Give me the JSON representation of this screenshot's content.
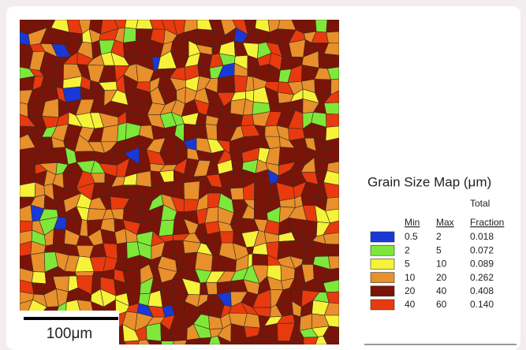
{
  "legend": {
    "title": "Grain Size Map (μm)",
    "header": {
      "total": "Total",
      "min": "Min",
      "max": "Max",
      "fraction": "Fraction"
    },
    "rows": [
      {
        "color": "#1838d8",
        "min": "0.5",
        "max": "2",
        "fraction": "0.018"
      },
      {
        "color": "#7ee83a",
        "min": "2",
        "max": "5",
        "fraction": "0.072"
      },
      {
        "color": "#f6f23a",
        "min": "5",
        "max": "10",
        "fraction": "0.089"
      },
      {
        "color": "#e8902c",
        "min": "10",
        "max": "20",
        "fraction": "0.262"
      },
      {
        "color": "#7a1408",
        "min": "20",
        "max": "40",
        "fraction": "0.408"
      },
      {
        "color": "#e83a0e",
        "min": "40",
        "max": "60",
        "fraction": "0.140"
      }
    ]
  },
  "scale_bar": {
    "label": "100μm"
  }
}
